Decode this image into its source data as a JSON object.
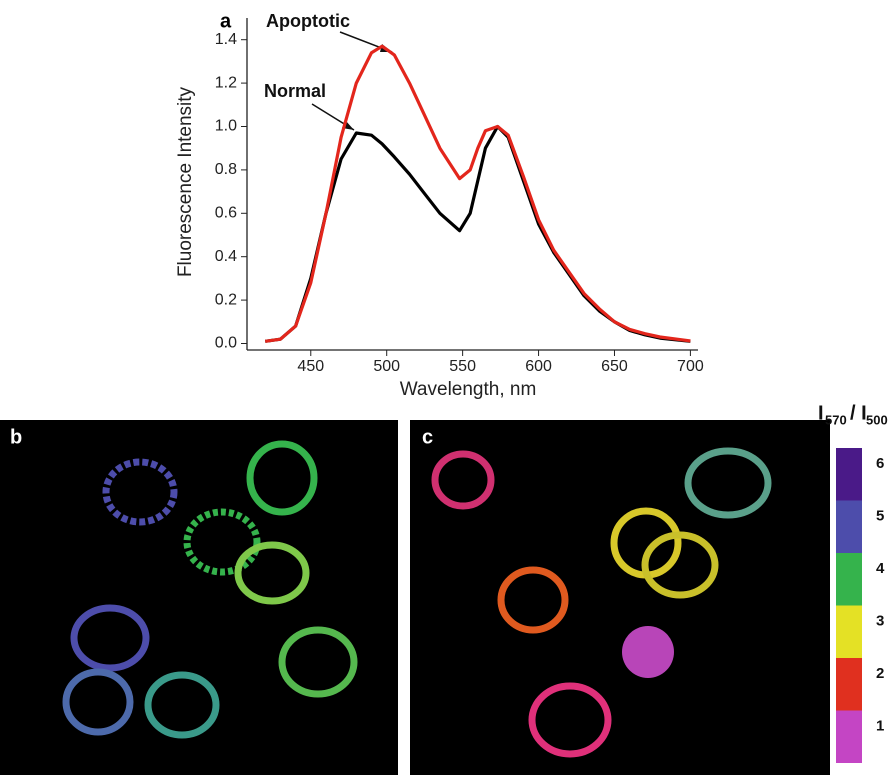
{
  "chart_data": {
    "type": "line",
    "panel_labels": [
      "a",
      "b",
      "c"
    ],
    "xlabel": "Wavelength, nm",
    "ylabel": "Fluorescence Intensity",
    "x": [
      420,
      430,
      440,
      450,
      460,
      470,
      480,
      490,
      497,
      505,
      515,
      525,
      535,
      548,
      555,
      560,
      565,
      573,
      580,
      590,
      600,
      610,
      620,
      630,
      640,
      650,
      660,
      670,
      680,
      700
    ],
    "series": [
      {
        "name": "Normal",
        "color": "#000000",
        "values": [
          0.01,
          0.02,
          0.08,
          0.3,
          0.6,
          0.85,
          0.97,
          0.96,
          0.92,
          0.86,
          0.78,
          0.69,
          0.6,
          0.52,
          0.6,
          0.75,
          0.9,
          1.0,
          0.95,
          0.75,
          0.55,
          0.42,
          0.32,
          0.22,
          0.15,
          0.1,
          0.06,
          0.04,
          0.025,
          0.01
        ]
      },
      {
        "name": "Apoptotic",
        "color": "#e3261c",
        "values": [
          0.01,
          0.02,
          0.08,
          0.28,
          0.6,
          0.95,
          1.2,
          1.34,
          1.37,
          1.33,
          1.2,
          1.05,
          0.9,
          0.76,
          0.8,
          0.9,
          0.98,
          1.0,
          0.96,
          0.77,
          0.57,
          0.43,
          0.33,
          0.23,
          0.16,
          0.1,
          0.065,
          0.045,
          0.03,
          0.012
        ]
      }
    ],
    "xlim": [
      408,
      705
    ],
    "ylim": [
      -0.03,
      1.5
    ],
    "xticks": [
      450,
      500,
      550,
      600,
      650,
      700
    ],
    "yticks": [
      {
        "value": 0,
        "label": "0.0"
      },
      {
        "value": 0.2,
        "label": "0.2"
      },
      {
        "value": 0.4,
        "label": "0.4"
      },
      {
        "value": 0.6,
        "label": "0.6"
      },
      {
        "value": 0.8,
        "label": "0.8"
      },
      {
        "value": 1.0,
        "label": "1.0"
      },
      {
        "value": 1.2,
        "label": "1.2"
      },
      {
        "value": 1.4,
        "label": "1.4"
      }
    ],
    "colorbar": {
      "title_parts": [
        "I",
        "570",
        "/ I",
        "500"
      ],
      "levels": [
        {
          "label": "6",
          "color": "#4a1a88"
        },
        {
          "label": "5",
          "color": "#4d4dab"
        },
        {
          "label": "4",
          "color": "#35b34c"
        },
        {
          "label": "3",
          "color": "#e4e125"
        },
        {
          "label": "2",
          "color": "#e0301f"
        },
        {
          "label": "1",
          "color": "#c445c4"
        }
      ]
    }
  }
}
